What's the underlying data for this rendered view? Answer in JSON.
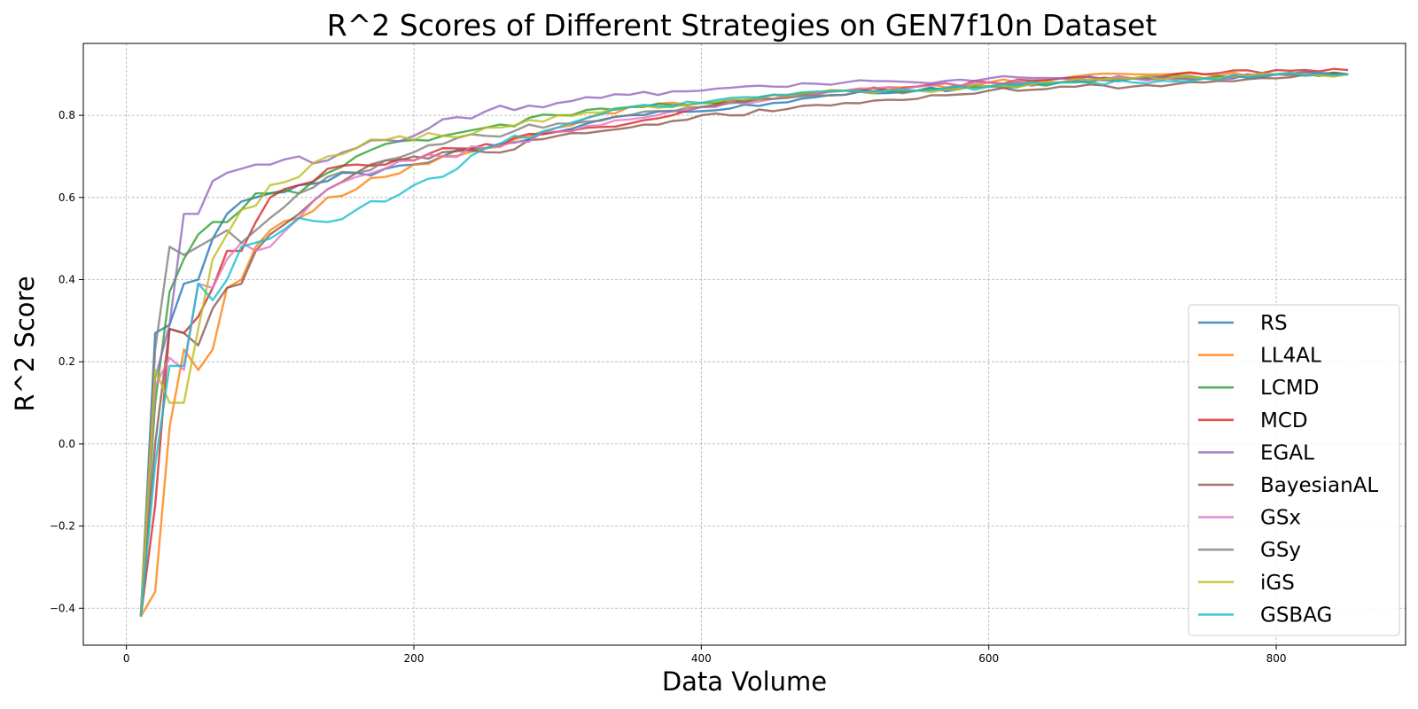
{
  "chart_data": {
    "type": "line",
    "title": "R^2 Scores of Different Strategies on GEN7f10n Dataset",
    "xlabel": "Data Volume",
    "ylabel": "R^2 Score",
    "xlim": [
      -30,
      890
    ],
    "ylim": [
      -0.49,
      0.975
    ],
    "xticks": [
      0,
      200,
      400,
      600,
      800
    ],
    "xtick_labels": [
      "0",
      "200",
      "400",
      "600",
      "800"
    ],
    "yticks": [
      -0.4,
      -0.2,
      0.0,
      0.2,
      0.4,
      0.6,
      0.8
    ],
    "ytick_labels": [
      "−0.4",
      "−0.2",
      "0.0",
      "0.2",
      "0.4",
      "0.6",
      "0.8"
    ],
    "grid": true,
    "legend_position": "lower-right",
    "anchors_x": [
      10,
      20,
      30,
      40,
      50,
      60,
      70,
      80,
      90,
      100,
      120,
      140,
      160,
      180,
      200,
      220,
      250,
      300,
      350,
      400,
      450,
      500,
      550,
      600,
      650,
      700,
      750,
      800,
      850
    ],
    "series": [
      {
        "name": "RS",
        "color": "#1f77b4",
        "values": [
          -0.42,
          0.27,
          0.29,
          0.39,
          0.4,
          0.5,
          0.56,
          0.59,
          0.6,
          0.61,
          0.63,
          0.64,
          0.66,
          0.67,
          0.68,
          0.7,
          0.72,
          0.76,
          0.8,
          0.81,
          0.83,
          0.85,
          0.86,
          0.87,
          0.88,
          0.89,
          0.89,
          0.9,
          0.9
        ]
      },
      {
        "name": "LL4AL",
        "color": "#ff7f0e",
        "values": [
          -0.42,
          -0.36,
          0.04,
          0.23,
          0.18,
          0.23,
          0.38,
          0.4,
          0.48,
          0.52,
          0.55,
          0.6,
          0.62,
          0.65,
          0.68,
          0.7,
          0.72,
          0.77,
          0.82,
          0.83,
          0.84,
          0.86,
          0.87,
          0.88,
          0.89,
          0.9,
          0.9,
          0.9,
          0.9
        ]
      },
      {
        "name": "LCMD",
        "color": "#2ca02c",
        "values": [
          -0.42,
          0.1,
          0.37,
          0.45,
          0.51,
          0.54,
          0.54,
          0.57,
          0.61,
          0.61,
          0.61,
          0.66,
          0.7,
          0.73,
          0.74,
          0.75,
          0.77,
          0.8,
          0.82,
          0.83,
          0.85,
          0.86,
          0.86,
          0.87,
          0.88,
          0.89,
          0.89,
          0.9,
          0.9
        ]
      },
      {
        "name": "MCD",
        "color": "#d62728",
        "values": [
          -0.42,
          -0.15,
          0.28,
          0.27,
          0.31,
          0.38,
          0.47,
          0.47,
          0.54,
          0.6,
          0.63,
          0.67,
          0.68,
          0.68,
          0.69,
          0.72,
          0.73,
          0.76,
          0.78,
          0.82,
          0.85,
          0.86,
          0.87,
          0.88,
          0.89,
          0.89,
          0.9,
          0.91,
          0.91
        ]
      },
      {
        "name": "EGAL",
        "color": "#9467bd",
        "values": [
          -0.42,
          0.16,
          0.29,
          0.56,
          0.56,
          0.64,
          0.66,
          0.67,
          0.68,
          0.68,
          0.7,
          0.69,
          0.72,
          0.74,
          0.75,
          0.79,
          0.81,
          0.83,
          0.85,
          0.86,
          0.87,
          0.88,
          0.88,
          0.89,
          0.89,
          0.89,
          0.89,
          0.9,
          0.9
        ]
      },
      {
        "name": "BayesianAL",
        "color": "#8c564b",
        "values": [
          -0.42,
          0.0,
          0.28,
          0.27,
          0.24,
          0.33,
          0.38,
          0.39,
          0.47,
          0.51,
          0.56,
          0.62,
          0.66,
          0.69,
          0.7,
          0.71,
          0.71,
          0.75,
          0.77,
          0.8,
          0.81,
          0.83,
          0.84,
          0.86,
          0.87,
          0.87,
          0.88,
          0.89,
          0.9
        ]
      },
      {
        "name": "GSx",
        "color": "#e377c2",
        "values": [
          -0.42,
          0.14,
          0.21,
          0.18,
          0.39,
          0.38,
          0.45,
          0.49,
          0.47,
          0.48,
          0.55,
          0.62,
          0.65,
          0.67,
          0.69,
          0.7,
          0.72,
          0.76,
          0.79,
          0.82,
          0.84,
          0.86,
          0.87,
          0.88,
          0.88,
          0.89,
          0.89,
          0.9,
          0.9
        ]
      },
      {
        "name": "GSy",
        "color": "#7f7f7f",
        "values": [
          -0.42,
          0.23,
          0.48,
          0.46,
          0.48,
          0.5,
          0.52,
          0.49,
          0.52,
          0.55,
          0.61,
          0.65,
          0.66,
          0.69,
          0.71,
          0.73,
          0.75,
          0.78,
          0.8,
          0.82,
          0.84,
          0.85,
          0.86,
          0.87,
          0.88,
          0.89,
          0.89,
          0.9,
          0.9
        ]
      },
      {
        "name": "iGS",
        "color": "#bcbd22",
        "values": [
          -0.42,
          0.18,
          0.1,
          0.1,
          0.28,
          0.45,
          0.51,
          0.57,
          0.58,
          0.63,
          0.65,
          0.7,
          0.72,
          0.74,
          0.74,
          0.75,
          0.77,
          0.8,
          0.82,
          0.83,
          0.85,
          0.86,
          0.86,
          0.87,
          0.88,
          0.89,
          0.89,
          0.9,
          0.9
        ]
      },
      {
        "name": "GSBAG",
        "color": "#17becf",
        "values": [
          -0.42,
          -0.05,
          0.19,
          0.19,
          0.39,
          0.35,
          0.4,
          0.48,
          0.49,
          0.5,
          0.55,
          0.54,
          0.57,
          0.59,
          0.63,
          0.65,
          0.72,
          0.77,
          0.82,
          0.83,
          0.85,
          0.86,
          0.86,
          0.87,
          0.88,
          0.88,
          0.89,
          0.9,
          0.9
        ]
      }
    ]
  }
}
